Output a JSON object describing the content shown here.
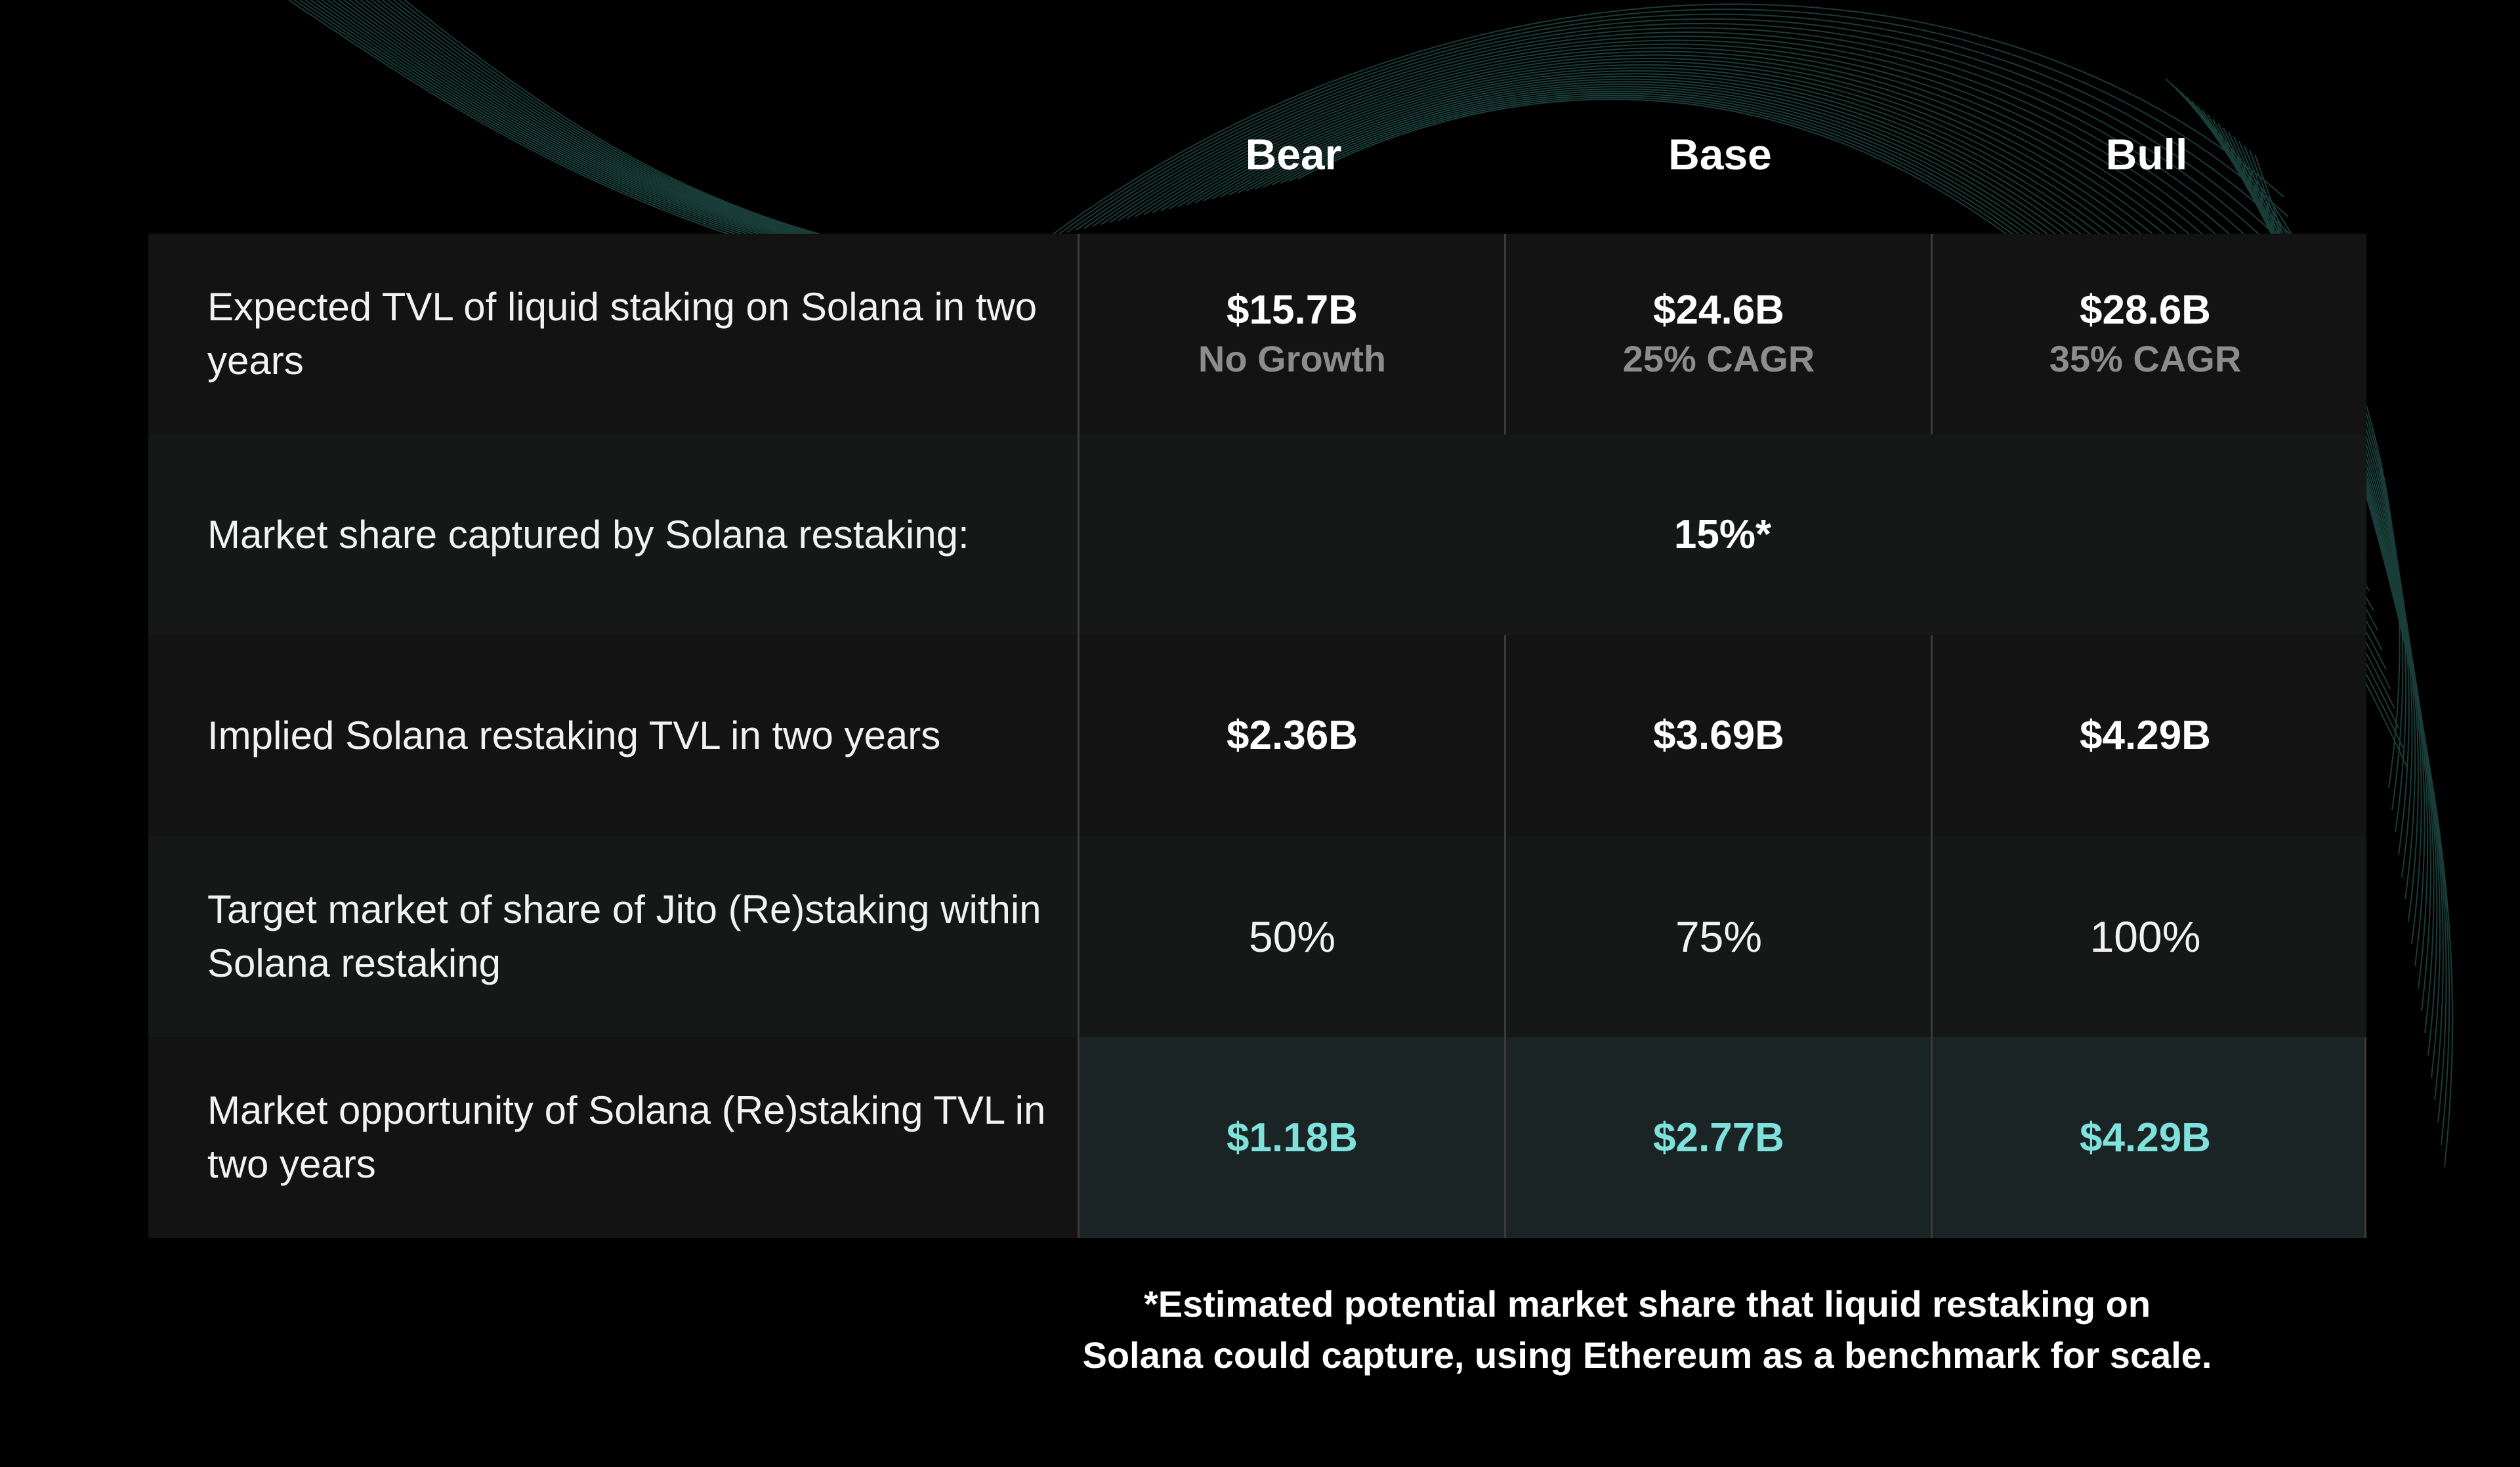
{
  "chart_data": {
    "type": "table",
    "columns": [
      "Bear",
      "Base",
      "Bull"
    ],
    "rows": [
      {
        "label": "Expected TVL of liquid staking on Solana in two years",
        "values": [
          "$15.7B",
          "$24.6B",
          "$28.6B"
        ],
        "notes": [
          "No Growth",
          "25% CAGR",
          "35% CAGR"
        ]
      },
      {
        "label": "Market share captured by Solana restaking:",
        "merged_value": "15%*"
      },
      {
        "label": "Implied Solana restaking TVL in two years",
        "values": [
          "$2.36B",
          "$3.69B",
          "$4.29B"
        ]
      },
      {
        "label": "Target market of share of Jito (Re)staking within Solana restaking",
        "values": [
          "50%",
          "75%",
          "100%"
        ]
      },
      {
        "label": "Market opportunity of Solana (Re)staking TVL in two years",
        "values": [
          "$1.18B",
          "$2.77B",
          "$4.29B"
        ],
        "highlight_color": "#7fe0dc"
      }
    ],
    "footnote_lines": [
      "*Estimated potential market share that liquid restaking on",
      "Solana could capture, using Ethereum as a benchmark for scale."
    ]
  },
  "colors": {
    "background": "#000000",
    "row_dark": "#131313",
    "row_light": "#161717",
    "highlight_bg": "#1a2424",
    "highlight_text": "#7fe0dc",
    "muted_text": "#8c8c8c",
    "decor_lines": "#2f6f66"
  }
}
